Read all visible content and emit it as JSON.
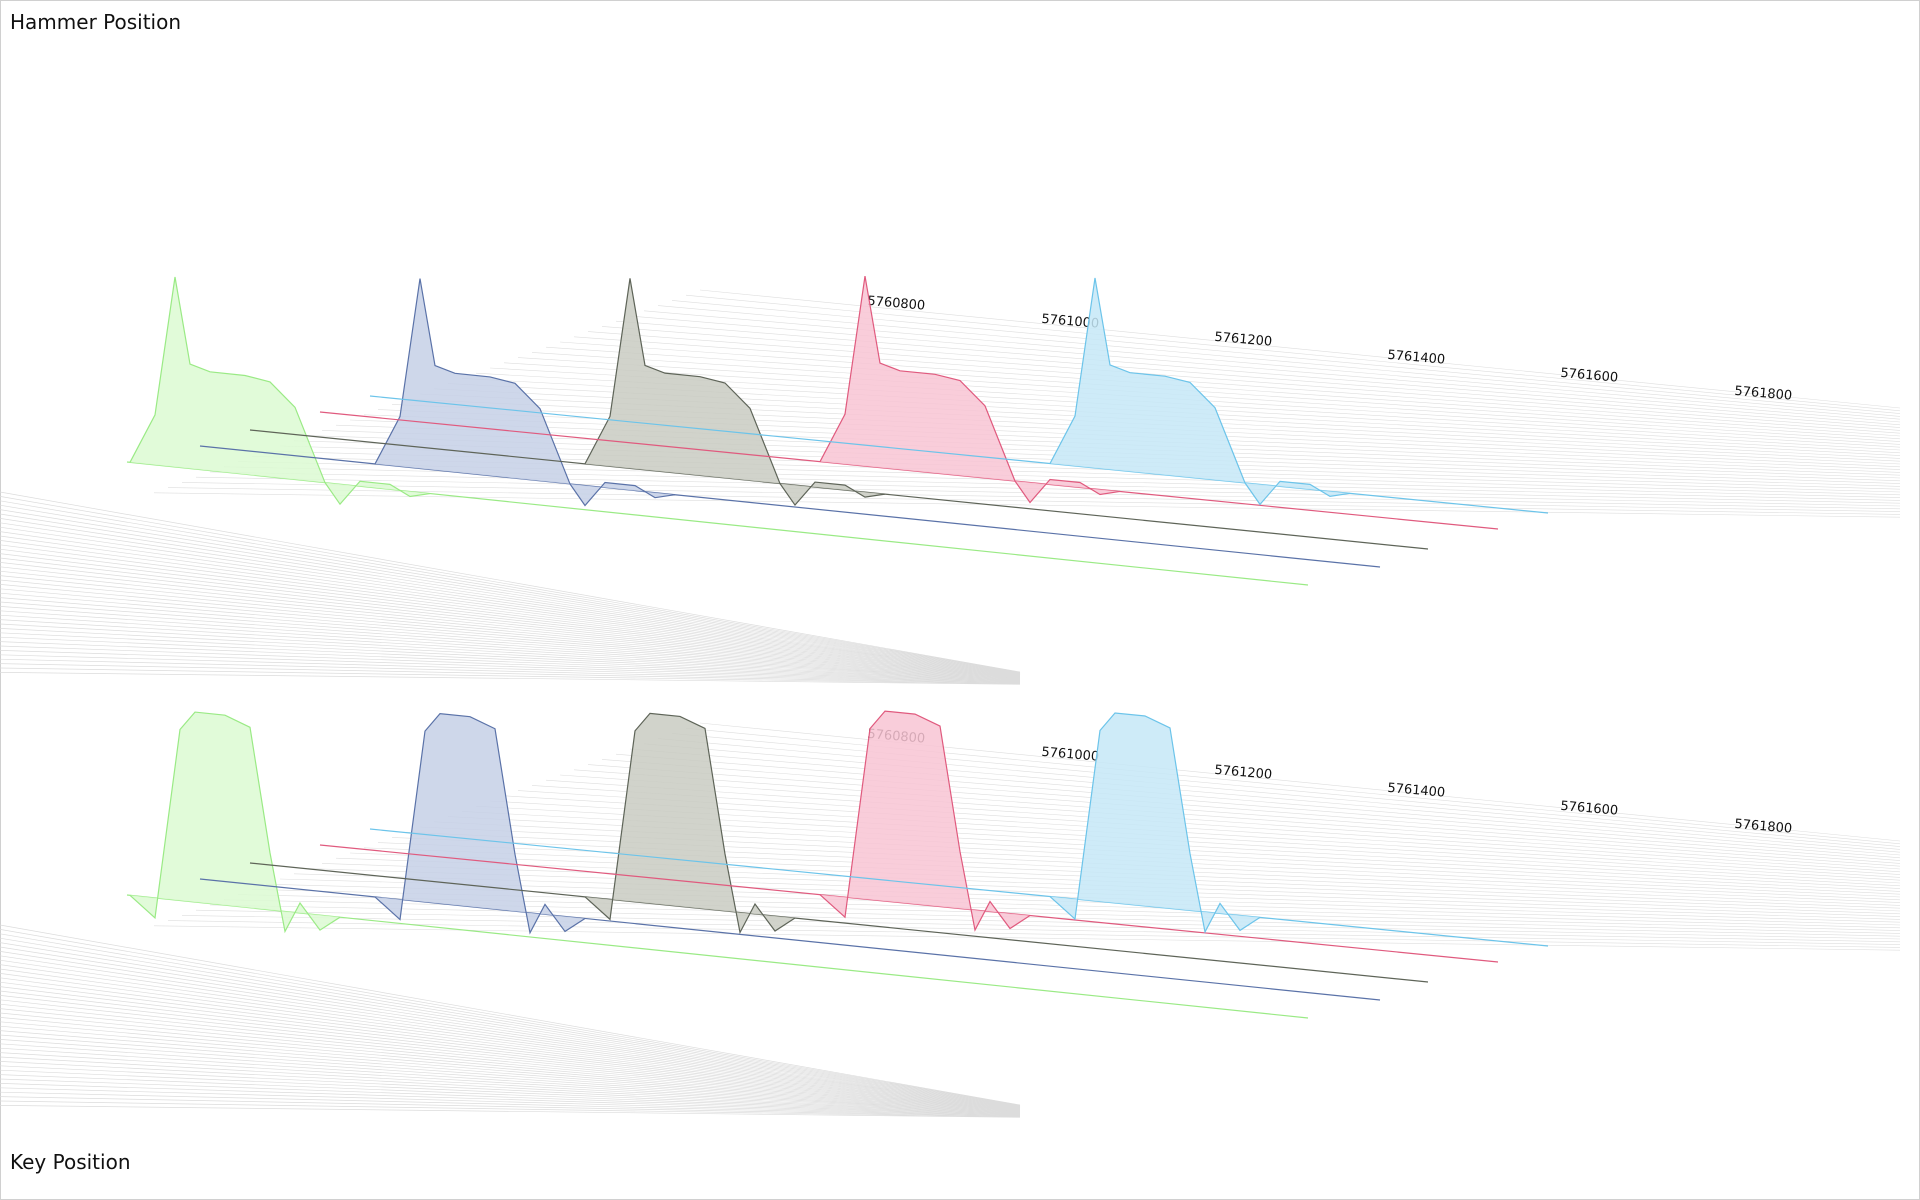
{
  "panels": {
    "top_title": "Hammer Position",
    "bottom_title": "Key Position"
  },
  "chart_data": [
    {
      "type": "area",
      "title": "Hammer Position",
      "xlabel": "",
      "ylabel": "",
      "x_ticks": [
        "5760800",
        "5761000",
        "5761200",
        "5761400",
        "5761600",
        "5761800"
      ],
      "grid": true,
      "projection": "3d-waterfall",
      "series": [
        {
          "color": "#9aea85",
          "fill": "#dcfad2",
          "peak": 1.0,
          "plateau": 0.62,
          "polarity": 1
        },
        {
          "color": "#5a72a8",
          "fill": "#c5d0e6",
          "peak": 1.0,
          "plateau": 0.62,
          "polarity": 1
        },
        {
          "color": "#5e6458",
          "fill": "#c9cbc2",
          "peak": 1.0,
          "plateau": 0.62,
          "polarity": 1
        },
        {
          "color": "#e05a7e",
          "fill": "#f8c4d3",
          "peak": 1.0,
          "plateau": 0.62,
          "polarity": 1
        },
        {
          "color": "#6cc4ea",
          "fill": "#c6e8f7",
          "peak": 1.0,
          "plateau": 0.62,
          "polarity": 1
        }
      ]
    },
    {
      "type": "area",
      "title": "Key Position",
      "xlabel": "",
      "ylabel": "",
      "x_ticks": [
        "5760800",
        "5761000",
        "5761200",
        "5761400",
        "5761600",
        "5761800"
      ],
      "grid": true,
      "projection": "3d-waterfall",
      "series": [
        {
          "color": "#9aea85",
          "fill": "#dcfad2",
          "peak": 1.0,
          "plateau": 1.0,
          "polarity": -1
        },
        {
          "color": "#5a72a8",
          "fill": "#c5d0e6",
          "peak": 1.0,
          "plateau": 1.0,
          "polarity": -1
        },
        {
          "color": "#5e6458",
          "fill": "#c9cbc2",
          "peak": 1.0,
          "plateau": 1.0,
          "polarity": -1
        },
        {
          "color": "#e05a7e",
          "fill": "#f8c4d3",
          "peak": 1.0,
          "plateau": 1.0,
          "polarity": -1
        },
        {
          "color": "#6cc4ea",
          "fill": "#c6e8f7",
          "peak": 1.0,
          "plateau": 1.0,
          "polarity": -1
        }
      ]
    }
  ]
}
